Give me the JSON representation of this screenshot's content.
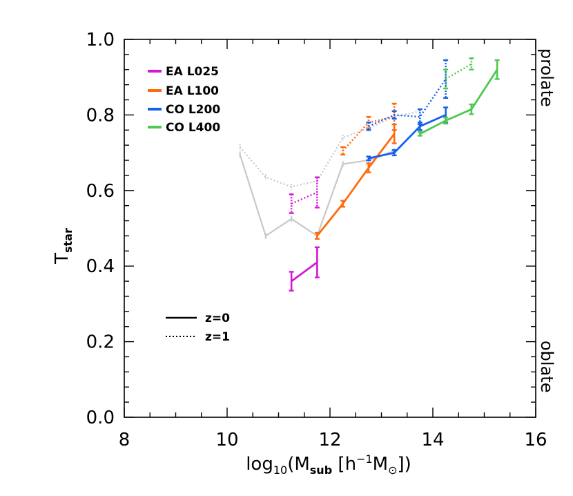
{
  "chart_data": {
    "type": "line",
    "xlabel": "log₁₀(M_sub [h⁻¹M⊙])",
    "xlabel_parts": {
      "pre": "log",
      "sub1": "10",
      "mid": "(M",
      "sub2": "sub",
      "mid2": " [h",
      "sup": "−1",
      "mid3": "M",
      "sun": "⊙",
      "post": "])"
    },
    "ylabel": "T_star",
    "ylabel_parts": {
      "main": "T",
      "sub": "star"
    },
    "xlim": [
      8,
      16
    ],
    "ylim": [
      0.0,
      1.0
    ],
    "xticks": [
      "8",
      "10",
      "12",
      "14",
      "16"
    ],
    "yticks": [
      "0.0",
      "0.2",
      "0.4",
      "0.6",
      "0.8",
      "1.0"
    ],
    "right_labels": {
      "top": "prolate",
      "bottom": "oblate"
    },
    "legend_position": "top-left",
    "series": [
      {
        "name": "EA L025",
        "color": "#d617d6",
        "z0": {
          "x": [
            11.25,
            11.75
          ],
          "y": [
            0.36,
            0.41
          ],
          "err": [
            0.025,
            0.04
          ]
        },
        "z1": {
          "x": [
            11.25,
            11.75
          ],
          "y": [
            0.565,
            0.595
          ],
          "err": [
            0.025,
            0.04
          ]
        }
      },
      {
        "name": "EA L100",
        "color": "#ff6a0f",
        "z0": {
          "x": [
            11.75,
            12.25,
            12.75,
            13.25
          ],
          "y": [
            0.48,
            0.565,
            0.66,
            0.75
          ],
          "err": [
            0.008,
            0.008,
            0.012,
            0.025
          ]
        },
        "z1": {
          "x": [
            12.25,
            12.75,
            13.25
          ],
          "y": [
            0.705,
            0.78,
            0.795
          ],
          "err": [
            0.01,
            0.015,
            0.035
          ]
        }
      },
      {
        "name": "CO L200",
        "color": "#1660ee",
        "z0": {
          "x": [
            12.75,
            13.25,
            13.75,
            14.25
          ],
          "y": [
            0.685,
            0.7,
            0.77,
            0.8
          ],
          "err": [
            0.005,
            0.007,
            0.01,
            0.02
          ]
        },
        "z1": {
          "x": [
            12.75,
            13.25,
            13.75,
            14.25
          ],
          "y": [
            0.77,
            0.8,
            0.795,
            0.895
          ],
          "err": [
            0.01,
            0.01,
            0.02,
            0.05
          ]
        }
      },
      {
        "name": "CO L400",
        "color": "#4fc84f",
        "z0": {
          "x": [
            13.75,
            14.25,
            14.75,
            15.25
          ],
          "y": [
            0.75,
            0.785,
            0.815,
            0.92
          ],
          "err": [
            0.005,
            0.008,
            0.013,
            0.025
          ]
        },
        "z1": {
          "x": [
            14.25,
            14.75
          ],
          "y": [
            0.895,
            0.935
          ],
          "err": [
            0.025,
            0.015
          ]
        }
      }
    ],
    "background_series": {
      "color": "#c8c8c8",
      "z0": {
        "x": [
          10.25,
          10.75,
          11.25,
          11.75,
          12.25,
          12.75,
          13.25
        ],
        "y": [
          0.695,
          0.48,
          0.525,
          0.48,
          0.67,
          0.68,
          0.705
        ]
      },
      "z1": {
        "x": [
          10.25,
          10.75,
          11.25,
          11.75,
          12.25,
          12.75,
          13.25,
          13.75
        ],
        "y": [
          0.715,
          0.635,
          0.61,
          0.625,
          0.74,
          0.765,
          0.795,
          0.81
        ]
      }
    },
    "line_styles": [
      {
        "label": "z=0",
        "dash": "solid"
      },
      {
        "label": "z=1",
        "dash": "dotted"
      }
    ]
  }
}
